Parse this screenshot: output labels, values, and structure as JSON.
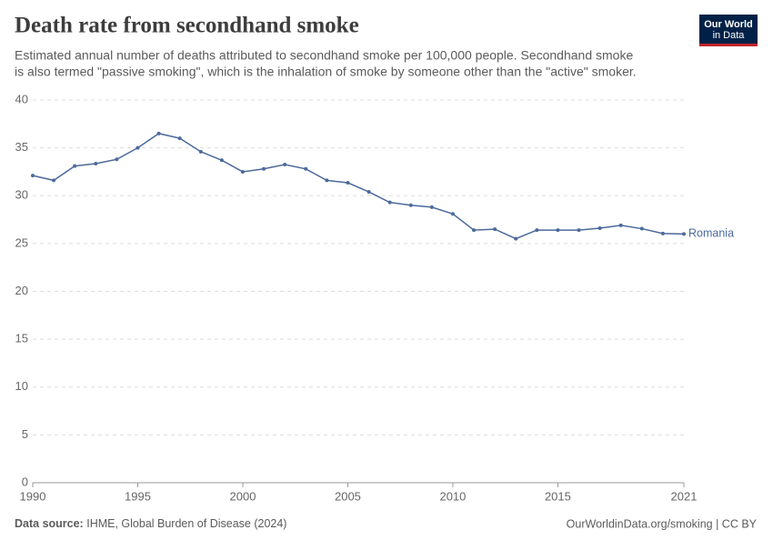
{
  "chart_data": {
    "type": "line",
    "title": "Death rate from secondhand smoke",
    "subtitle": [
      "Estimated annual number of deaths attributed to secondhand smoke per 100,000 people. Secondhand smoke",
      "is also termed \"passive smoking\", which is the inhalation of smoke by someone other than the \"active\" smoker."
    ],
    "x": [
      1990,
      1991,
      1992,
      1993,
      1994,
      1995,
      1996,
      1997,
      1998,
      1999,
      2000,
      2001,
      2002,
      2003,
      2004,
      2005,
      2006,
      2007,
      2008,
      2009,
      2010,
      2011,
      2012,
      2013,
      2014,
      2015,
      2016,
      2017,
      2018,
      2019,
      2020,
      2021
    ],
    "series": [
      {
        "name": "Romania",
        "color": "#4c6a9c",
        "values": [
          32.1,
          31.6,
          33.1,
          33.35,
          33.8,
          35.0,
          36.5,
          36.0,
          34.6,
          33.7,
          32.5,
          32.8,
          33.25,
          32.8,
          31.6,
          31.35,
          30.4,
          29.3,
          29.0,
          28.8,
          28.1,
          26.4,
          26.5,
          25.5,
          26.4,
          26.4,
          26.4,
          26.6,
          26.9,
          26.55,
          26.05,
          26.0
        ]
      }
    ],
    "xlim": [
      1990,
      2021
    ],
    "xticks": [
      1990,
      1995,
      2000,
      2005,
      2010,
      2015,
      2021
    ],
    "ylim": [
      0,
      40
    ],
    "yticks": [
      0,
      5,
      10,
      15,
      20,
      25,
      30,
      35,
      40
    ],
    "grid": true,
    "source_label": "Data source:",
    "source": "IHME, Global Burden of Disease (2024)",
    "credit": "OurWorldinData.org/smoking | CC BY",
    "logo": [
      "Our World",
      "in Data"
    ]
  }
}
